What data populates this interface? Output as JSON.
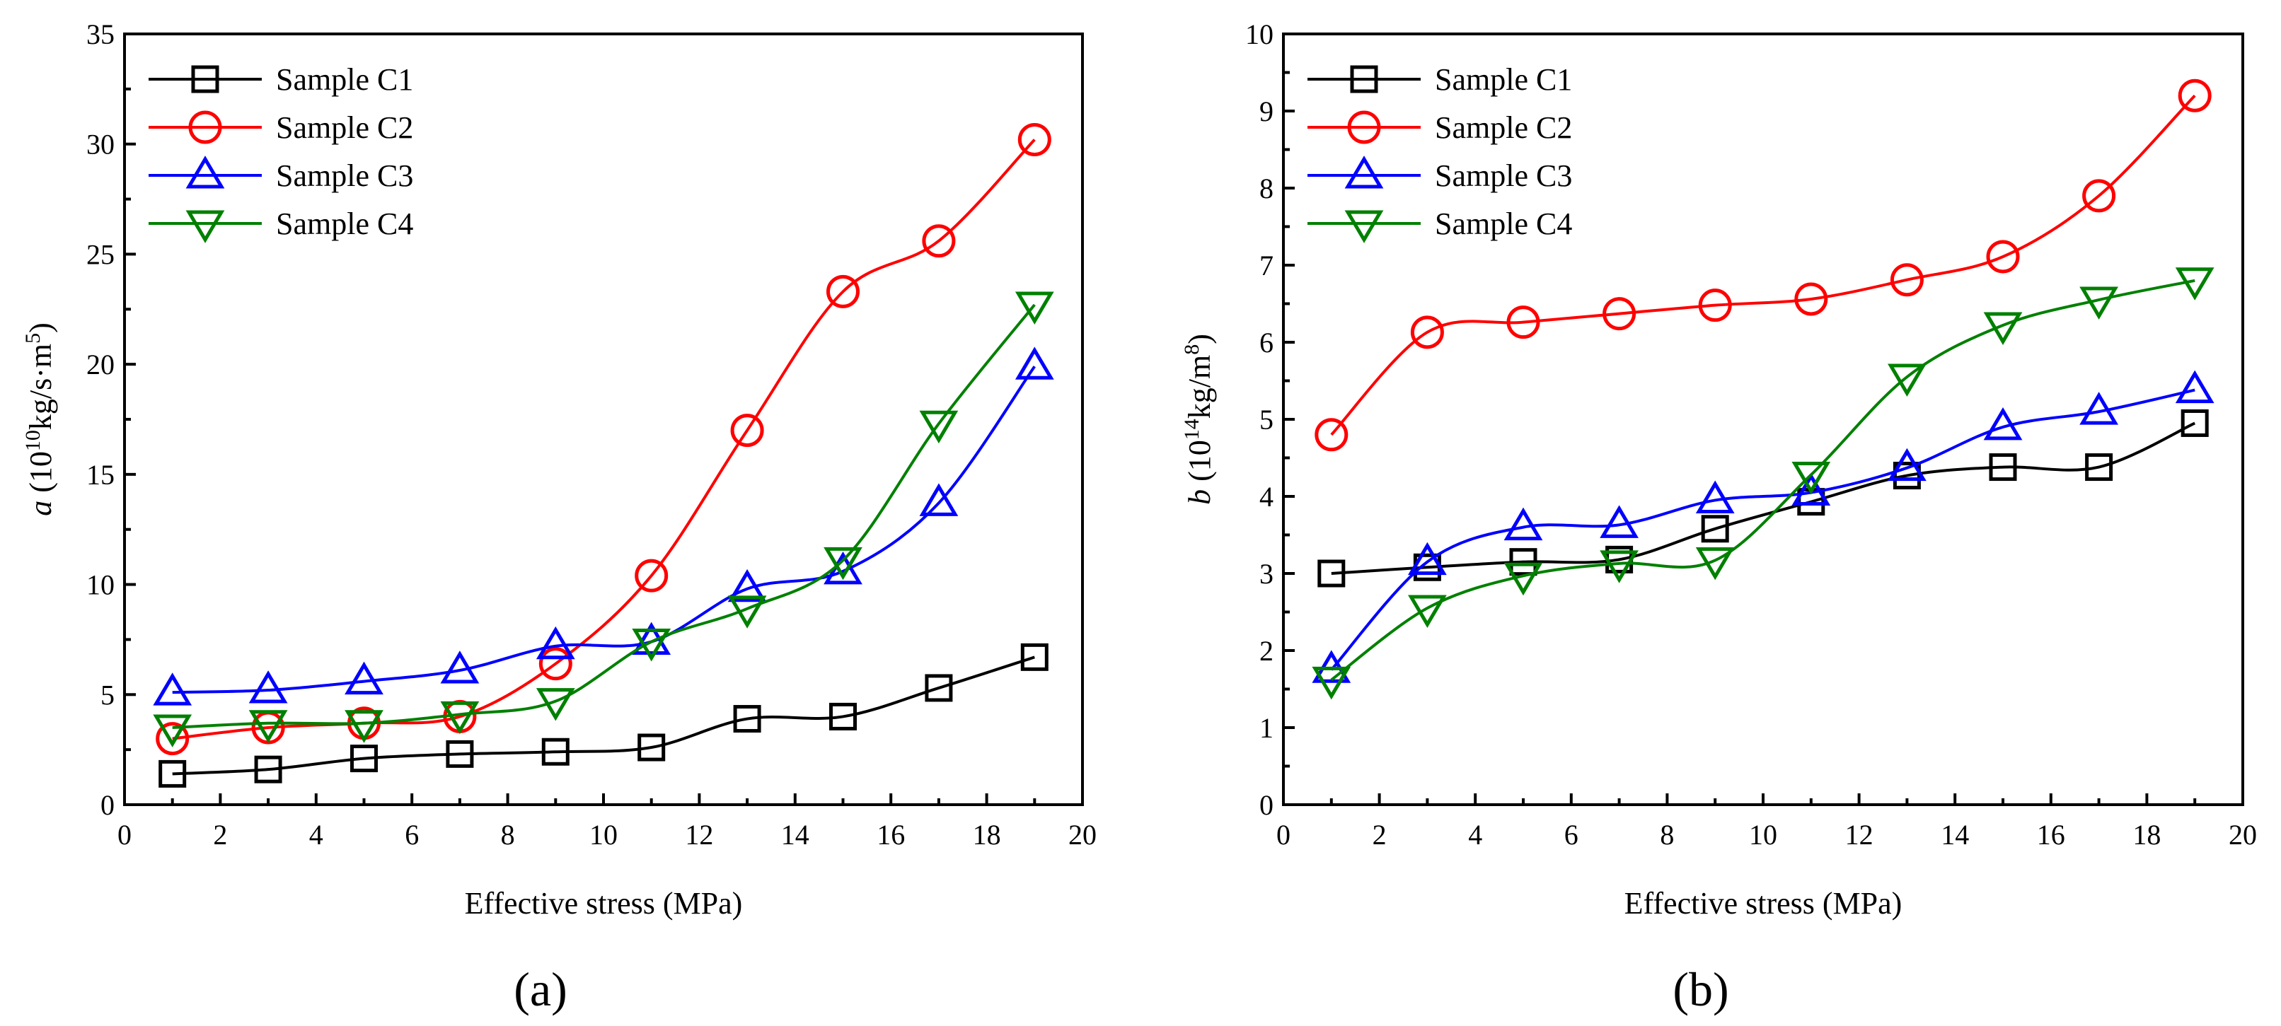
{
  "colors": {
    "Sample C1": "#000000",
    "Sample C2": "#ff0000",
    "Sample C3": "#0000ff",
    "Sample C4": "#008000"
  },
  "markers": {
    "Sample C1": "square",
    "Sample C2": "circle",
    "Sample C3": "triangle-up",
    "Sample C4": "triangle-down"
  },
  "chart_data": [
    {
      "id": "a",
      "type": "line",
      "panel_label": "(a)",
      "title": "",
      "xlabel": "Effective stress (MPa)",
      "ylabel": {
        "symbol": "a",
        "open": " (10",
        "exp": "10",
        "unit": "kg/s·m",
        "unit_exp": "5",
        "close": ")"
      },
      "xlim": [
        0,
        20
      ],
      "ylim": [
        0,
        35
      ],
      "xticks": [
        "0",
        "2",
        "4",
        "6",
        "8",
        "10",
        "12",
        "14",
        "16",
        "18",
        "20"
      ],
      "yticks": [
        "0",
        "5",
        "10",
        "15",
        "20",
        "25",
        "30",
        "35"
      ],
      "legend_position": "top-left",
      "x": [
        1,
        3,
        5,
        7,
        9,
        11,
        13,
        15,
        17,
        19
      ],
      "series": [
        {
          "name": "Sample C1",
          "values": [
            1.4,
            1.6,
            2.1,
            2.3,
            2.4,
            2.6,
            3.9,
            4.0,
            5.3,
            6.7
          ]
        },
        {
          "name": "Sample C2",
          "values": [
            3.0,
            3.5,
            3.7,
            4.0,
            6.4,
            10.4,
            17.0,
            23.3,
            25.6,
            30.2
          ]
        },
        {
          "name": "Sample C3",
          "values": [
            5.1,
            5.2,
            5.6,
            6.1,
            7.2,
            7.4,
            9.8,
            10.6,
            13.7,
            19.9
          ]
        },
        {
          "name": "Sample C4",
          "values": [
            3.5,
            3.7,
            3.7,
            4.1,
            4.7,
            7.4,
            8.9,
            11.1,
            17.3,
            22.7
          ]
        }
      ]
    },
    {
      "id": "b",
      "type": "line",
      "panel_label": "(b)",
      "title": "",
      "xlabel": "Effective stress (MPa)",
      "ylabel": {
        "symbol": "b",
        "open": " (10",
        "exp": "14",
        "unit": "kg/m",
        "unit_exp": "8",
        "close": ")"
      },
      "xlim": [
        0,
        20
      ],
      "ylim": [
        0,
        10
      ],
      "xticks": [
        "0",
        "2",
        "4",
        "6",
        "8",
        "10",
        "12",
        "14",
        "16",
        "18",
        "20"
      ],
      "yticks": [
        "0",
        "1",
        "2",
        "3",
        "4",
        "5",
        "6",
        "7",
        "8",
        "9",
        "10"
      ],
      "legend_position": "top-left",
      "x": [
        1,
        3,
        5,
        7,
        9,
        11,
        13,
        15,
        17,
        19
      ],
      "series": [
        {
          "name": "Sample C1",
          "values": [
            3.0,
            3.08,
            3.15,
            3.18,
            3.58,
            3.93,
            4.27,
            4.38,
            4.38,
            4.95
          ]
        },
        {
          "name": "Sample C2",
          "values": [
            4.8,
            6.13,
            6.26,
            6.37,
            6.48,
            6.56,
            6.81,
            7.11,
            7.9,
            9.2
          ]
        },
        {
          "name": "Sample C3",
          "values": [
            1.75,
            3.15,
            3.6,
            3.63,
            3.95,
            4.05,
            4.37,
            4.9,
            5.1,
            5.38
          ]
        },
        {
          "name": "Sample C4",
          "values": [
            1.62,
            2.55,
            2.97,
            3.13,
            3.17,
            4.28,
            5.55,
            6.22,
            6.55,
            6.8
          ]
        }
      ]
    }
  ]
}
